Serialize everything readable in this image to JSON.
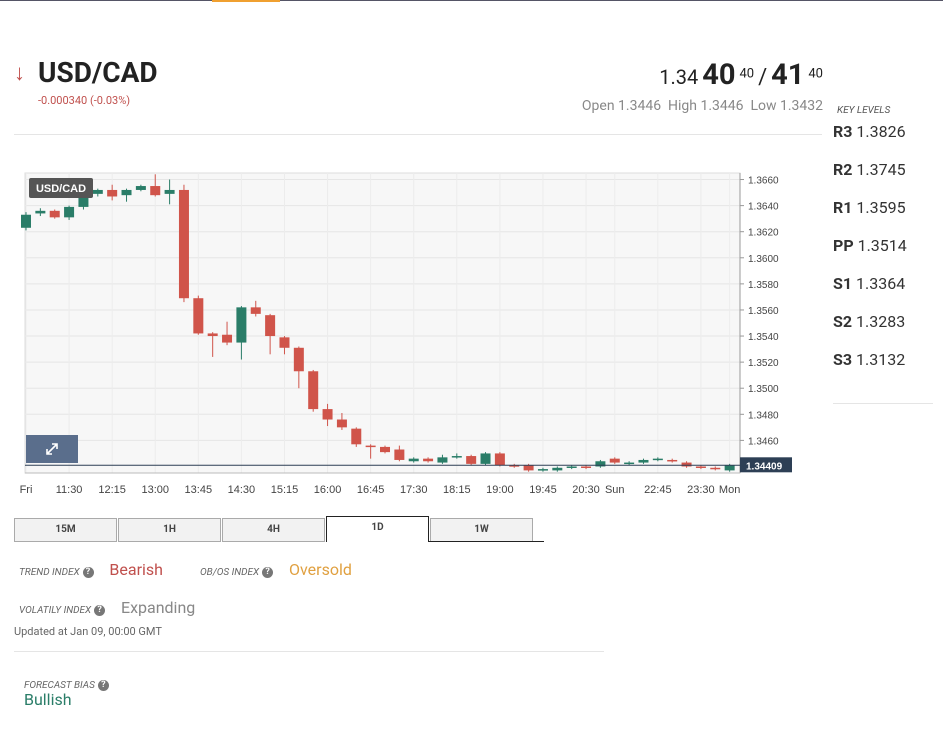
{
  "header": {
    "symbol": "USD/CAD",
    "change": "-0.000340 (-0.03%)",
    "price_big": "1.34",
    "bid_pips": "40",
    "bid_frac": "40",
    "separator": "/",
    "ask_pips": "41",
    "ask_frac": "40",
    "open": "Open 1.3446",
    "high": "High 1.3446",
    "low": "Low 1.3432"
  },
  "key_levels": {
    "title": "KEY LEVELS",
    "levels": [
      [
        "R3",
        "1.3826"
      ],
      [
        "R2",
        "1.3745"
      ],
      [
        "R1",
        "1.3595"
      ],
      [
        "PP",
        "1.3514"
      ],
      [
        "S1",
        "1.3364"
      ],
      [
        "S2",
        "1.3283"
      ],
      [
        "S3",
        "1.3132"
      ]
    ]
  },
  "chart_data": {
    "type": "candlestick",
    "title": "USD/CAD",
    "categories": [
      "Fri",
      null,
      null,
      "11:30",
      null,
      null,
      "12:15",
      null,
      null,
      "13:00",
      null,
      null,
      "13:45",
      null,
      null,
      "14:30",
      null,
      null,
      "15:15",
      null,
      null,
      "16:00",
      null,
      null,
      "16:45",
      null,
      null,
      "17:30",
      null,
      null,
      "18:15",
      null,
      null,
      "19:00",
      null,
      null,
      "19:45",
      null,
      null,
      "20:30",
      null,
      "Sun",
      null,
      null,
      "22:45",
      null,
      null,
      "23:30",
      null,
      "Mon"
    ],
    "open": [
      1.3623,
      1.3634,
      1.3636,
      1.3631,
      1.3639,
      1.3649,
      1.3652,
      1.3648,
      1.3652,
      1.3655,
      1.3649,
      1.3652,
      1.3569,
      1.3542,
      1.3541,
      1.3535,
      1.3562,
      1.3556,
      1.3539,
      1.3531,
      1.3513,
      1.3484,
      1.3476,
      1.3469,
      1.3456,
      1.3455,
      1.3453,
      1.3444,
      1.3446,
      1.3443,
      1.3447,
      1.3448,
      1.3442,
      1.345,
      1.3441,
      1.3441,
      1.3437,
      1.3437,
      1.3439,
      1.344,
      1.344,
      1.3446,
      1.3442,
      1.3443,
      1.3445,
      1.3445,
      1.3443,
      1.344,
      1.3439,
      1.3437
    ],
    "high": [
      1.3635,
      1.3638,
      1.3637,
      1.364,
      1.3653,
      1.3653,
      1.3656,
      1.3653,
      1.3656,
      1.3664,
      1.366,
      1.3656,
      1.3571,
      1.3543,
      1.3551,
      1.3563,
      1.3567,
      1.3557,
      1.354,
      1.3532,
      1.3514,
      1.3488,
      1.3481,
      1.347,
      1.3457,
      1.3456,
      1.3456,
      1.3447,
      1.3447,
      1.3449,
      1.345,
      1.3449,
      1.3451,
      1.3451,
      1.3442,
      1.3442,
      1.3439,
      1.344,
      1.3441,
      1.3441,
      1.3445,
      1.3447,
      1.3444,
      1.3446,
      1.3447,
      1.3446,
      1.3444,
      1.3441,
      1.344,
      1.3442
    ],
    "low": [
      1.3621,
      1.3632,
      1.363,
      1.3629,
      1.3637,
      1.3647,
      1.3644,
      1.3643,
      1.3651,
      1.3647,
      1.3641,
      1.3566,
      1.3541,
      1.3524,
      1.3533,
      1.3522,
      1.3555,
      1.3526,
      1.3526,
      1.35,
      1.3482,
      1.3471,
      1.3468,
      1.3455,
      1.3446,
      1.345,
      1.3444,
      1.3443,
      1.3443,
      1.3442,
      1.3446,
      1.3441,
      1.3441,
      1.344,
      1.3439,
      1.3436,
      1.3436,
      1.3436,
      1.3438,
      1.3438,
      1.3439,
      1.3442,
      1.3441,
      1.3442,
      1.3444,
      1.3443,
      1.3439,
      1.3438,
      1.3437,
      1.3436
    ],
    "close": [
      1.3633,
      1.3636,
      1.3631,
      1.3639,
      1.3649,
      1.3652,
      1.3647,
      1.3652,
      1.3655,
      1.3648,
      1.3652,
      1.3569,
      1.3542,
      1.354,
      1.3535,
      1.3562,
      1.3557,
      1.354,
      1.3531,
      1.3513,
      1.3484,
      1.3476,
      1.347,
      1.3457,
      1.3455,
      1.3451,
      1.3445,
      1.3446,
      1.3444,
      1.3447,
      1.3448,
      1.3442,
      1.345,
      1.3441,
      1.344,
      1.3437,
      1.3438,
      1.3439,
      1.344,
      1.3439,
      1.3444,
      1.3443,
      1.3443,
      1.3445,
      1.3446,
      1.3444,
      1.344,
      1.3439,
      1.3438,
      1.3441
    ],
    "up_color": "#2a7d68",
    "down_color": "#d0544a",
    "ylim": [
      1.3435,
      1.3665
    ],
    "yticks": [
      {
        "value": 1.346,
        "label": "1.3460"
      },
      {
        "value": 1.348,
        "label": "1.3480"
      },
      {
        "value": 1.35,
        "label": "1.3500"
      },
      {
        "value": 1.352,
        "label": "1.3520"
      },
      {
        "value": 1.354,
        "label": "1.3540"
      },
      {
        "value": 1.356,
        "label": "1.3560"
      },
      {
        "value": 1.358,
        "label": "1.3580"
      },
      {
        "value": 1.36,
        "label": "1.3600"
      },
      {
        "value": 1.362,
        "label": "1.3620"
      },
      {
        "value": 1.364,
        "label": "1.3640"
      },
      {
        "value": 1.366,
        "label": "1.3660"
      }
    ],
    "last_price": 1.34409,
    "grid": true
  },
  "tabs": {
    "items": [
      "15M",
      "1H",
      "4H",
      "1D",
      "1W"
    ],
    "active": 3
  },
  "indices": {
    "trend_label": "TREND INDEX",
    "trend_value": "Bearish",
    "obos_label": "OB/OS INDEX",
    "obos_value": "Oversold",
    "vol_label": "VOLATILY INDEX",
    "vol_value": "Expanding",
    "updated": "Updated at Jan 09, 00:00 GMT",
    "bias_label": "FORECAST BIAS",
    "bias_value": "Bullish"
  }
}
